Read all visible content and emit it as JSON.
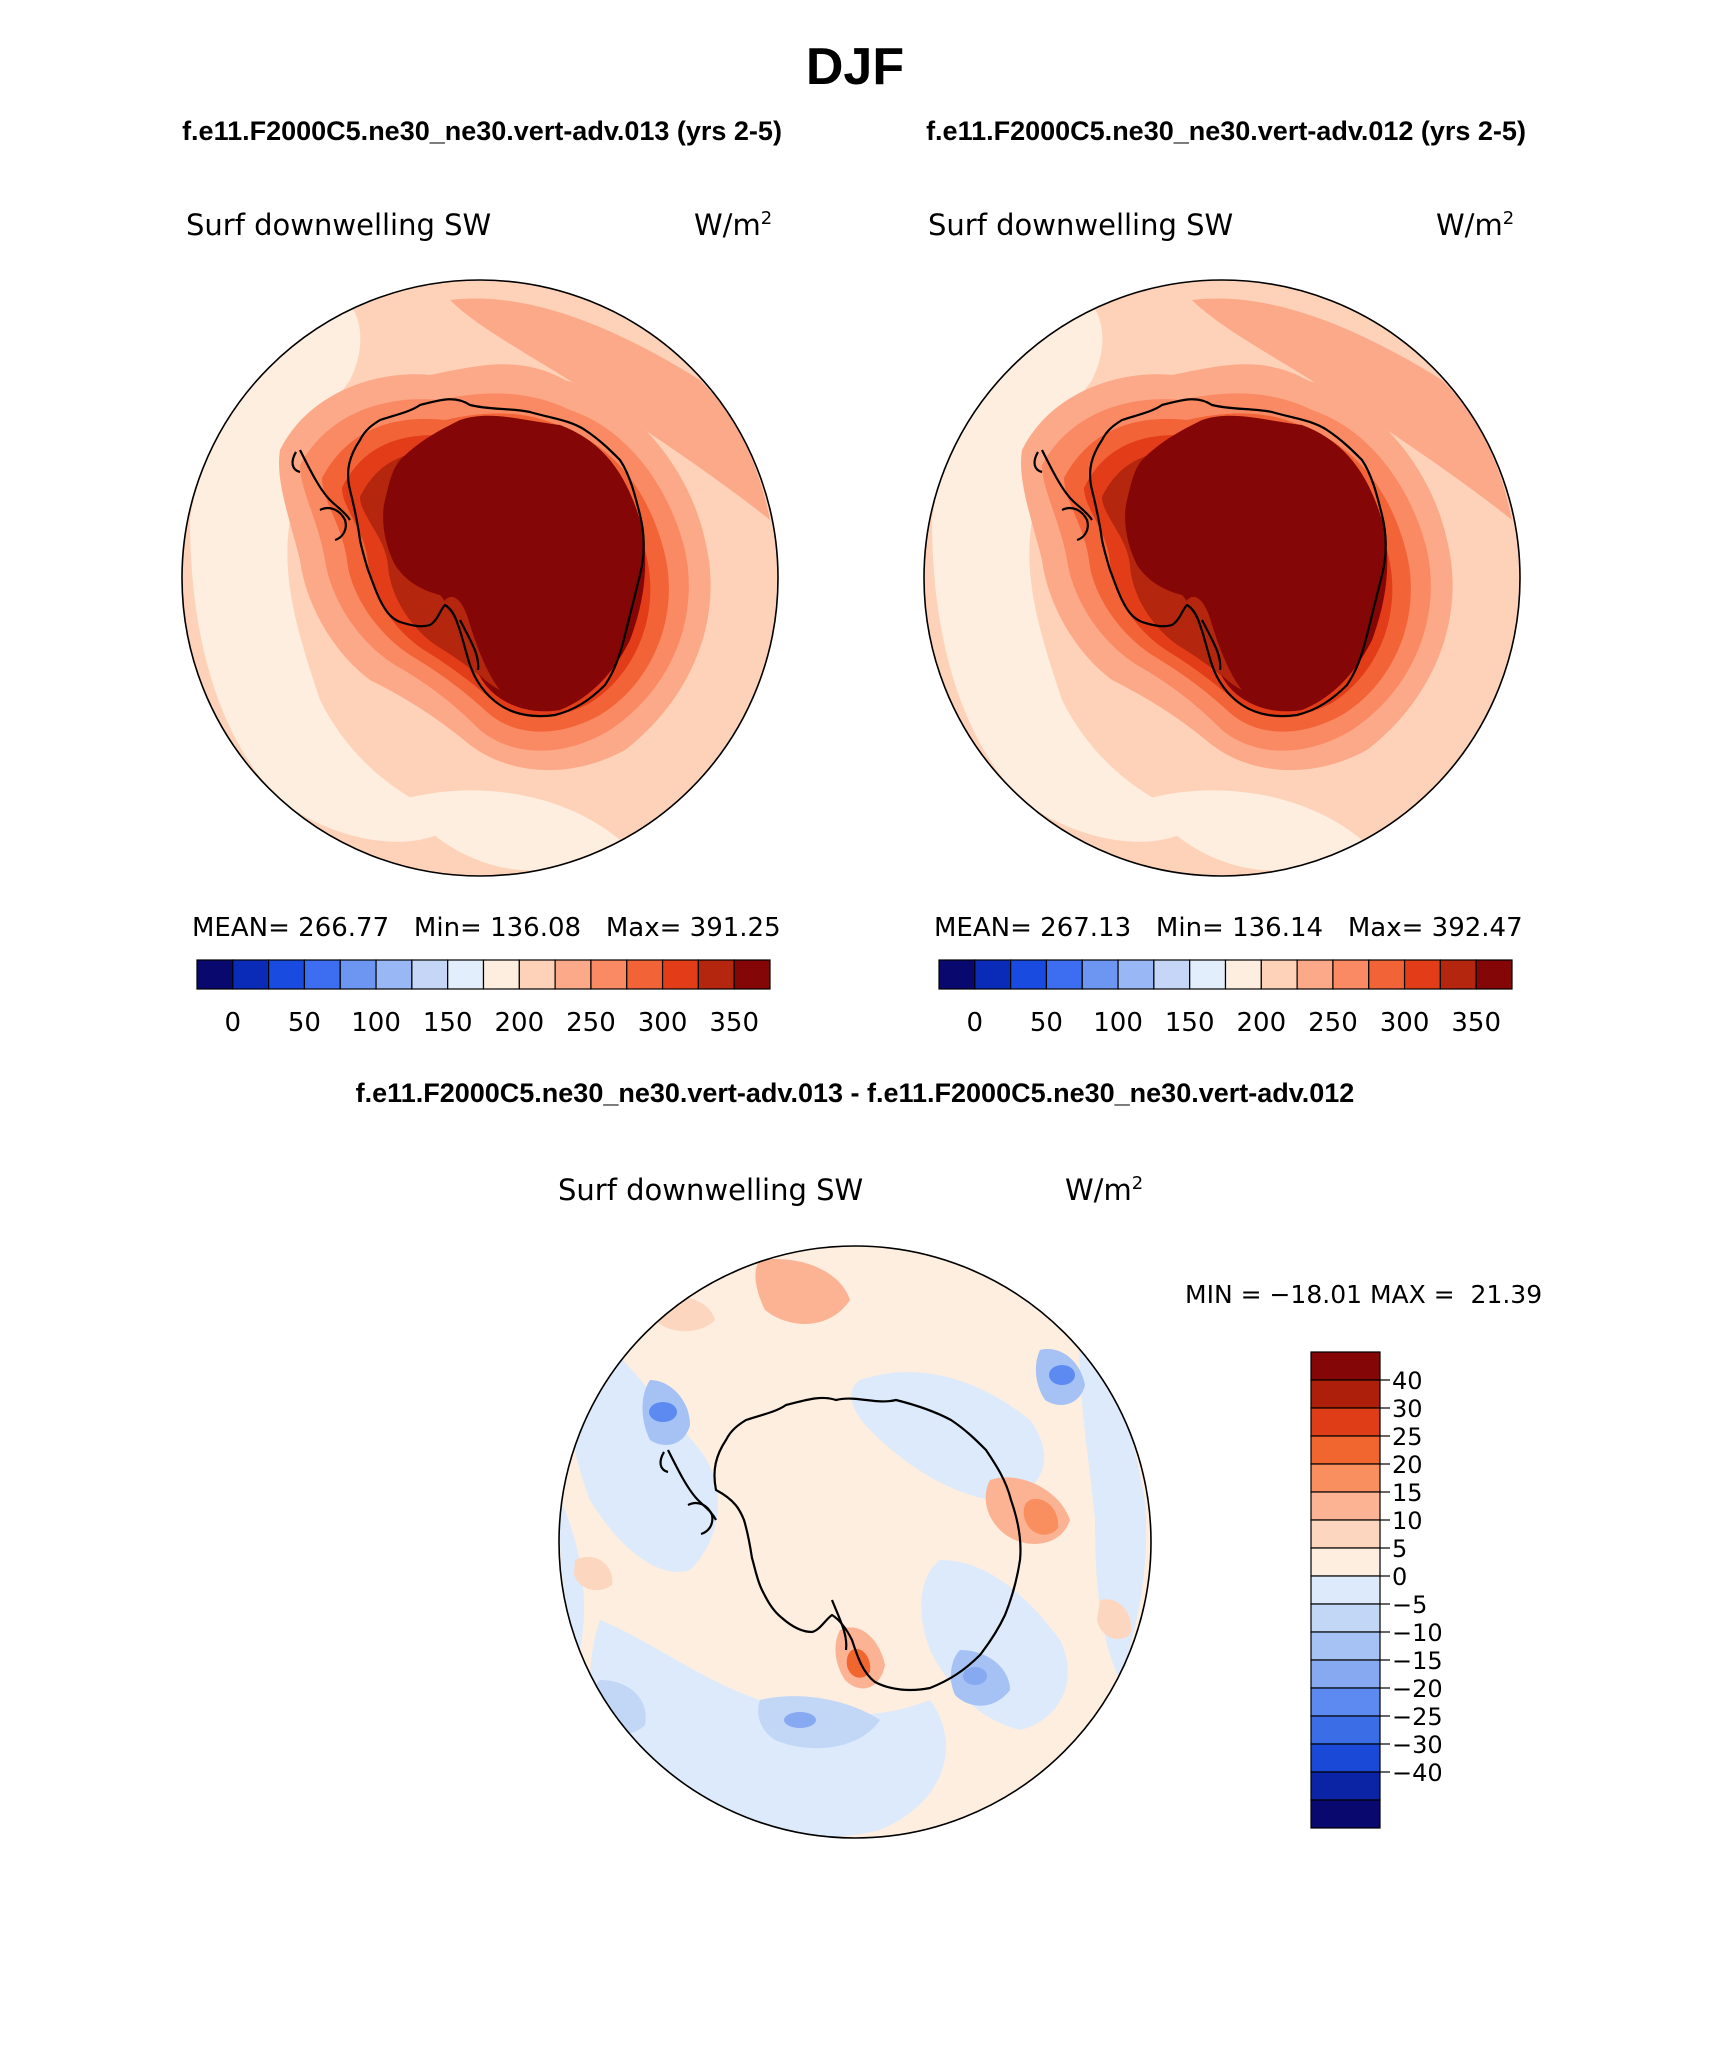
{
  "figure": {
    "season": "DJF",
    "case_a_title": "f.e11.F2000C5.ne30_ne30.vert-adv.013 (yrs 2-5)",
    "case_b_title": "f.e11.F2000C5.ne30_ne30.vert-adv.012 (yrs 2-5)",
    "diff_title": "f.e11.F2000C5.ne30_ne30.vert-adv.013 - f.e11.F2000C5.ne30_ne30.vert-adv.012"
  },
  "panels": {
    "case_a": {
      "variable": "Surf downwelling SW",
      "units_base": "W/m",
      "units_exp": "2",
      "stats": "MEAN= 266.77   Min= 136.08   Max= 391.25"
    },
    "case_b": {
      "variable": "Surf downwelling SW",
      "units_base": "W/m",
      "units_exp": "2",
      "stats": "MEAN= 267.13   Min= 136.14   Max= 392.47"
    },
    "diff": {
      "variable": "Surf downwelling SW",
      "units_base": "W/m",
      "units_exp": "2",
      "stats": "MIN = −18.01 MAX =  21.39"
    }
  },
  "colorbars": {
    "abs_colors": [
      "#08086e",
      "#0a2bb8",
      "#1a4be0",
      "#3d6df0",
      "#6d96f2",
      "#99b7f5",
      "#c5d6f7",
      "#e3eefc",
      "#fdeee0",
      "#fdd2b8",
      "#fca98a",
      "#f98a64",
      "#f26438",
      "#e23c18",
      "#b5260e",
      "#850606"
    ],
    "abs_labels": [
      "0",
      "50",
      "100",
      "150",
      "200",
      "250",
      "300",
      "350"
    ],
    "diff_colors": [
      "#850606",
      "#ad1f0b",
      "#de3d18",
      "#f1662e",
      "#f98e5f",
      "#fbb394",
      "#fdd6bf",
      "#fdeee0",
      "#ddeafb",
      "#c2d6f6",
      "#a6c2f4",
      "#86a9f2",
      "#5c8af0",
      "#3b6de6",
      "#1a49d8",
      "#0a24a5",
      "#08086e"
    ],
    "diff_labels": [
      "40",
      "30",
      "25",
      "20",
      "15",
      "10",
      "5",
      "0",
      "−5",
      "−10",
      "−15",
      "−20",
      "−25",
      "−30",
      "−40"
    ]
  }
}
